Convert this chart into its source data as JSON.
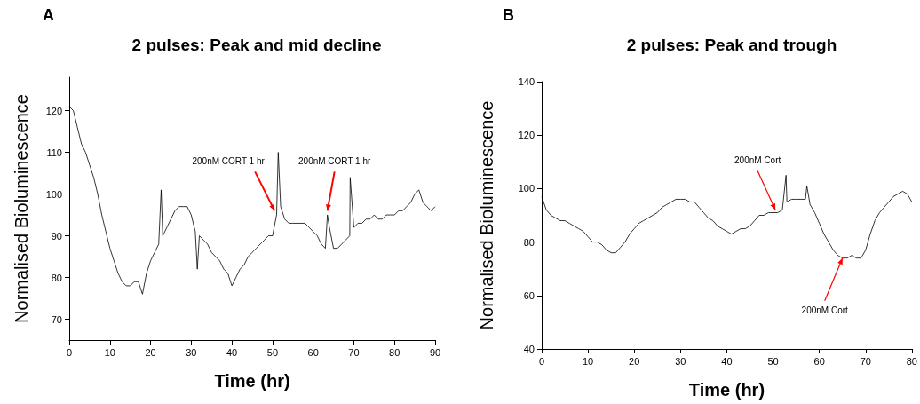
{
  "chart_data": [
    {
      "type": "line",
      "title": "2 pulses: Peak and mid decline",
      "xlabel": "Time (hr)",
      "ylabel": "Normalised Bioluminescence",
      "xlim": [
        0,
        90
      ],
      "ylim": [
        65,
        128
      ],
      "xticks": [
        0,
        10,
        20,
        30,
        40,
        50,
        60,
        70,
        80,
        90
      ],
      "yticks": [
        70,
        80,
        90,
        100,
        110,
        120
      ],
      "marker": "none",
      "line_style": "solid",
      "annotations": [
        "A",
        {
          "text": "200nM CORT 1 hr",
          "x": 50.5,
          "y": 96
        },
        {
          "text": "200nM CORT 1 hr",
          "x": 63.5,
          "y": 96
        }
      ],
      "series": [
        {
          "color": "#000000",
          "x": [
            0,
            1,
            2,
            3,
            4,
            5,
            6,
            7,
            8,
            9,
            10,
            11,
            12,
            13,
            14,
            15,
            16,
            17,
            18,
            19,
            20,
            21,
            22,
            22.6,
            23,
            24,
            25,
            26,
            27,
            28,
            29,
            30,
            31,
            31.5,
            32,
            33,
            34,
            35,
            36,
            37,
            38,
            39,
            40,
            41,
            42,
            43,
            44,
            45,
            46,
            47,
            48,
            49,
            50,
            51,
            51.4,
            52,
            53,
            54,
            55,
            56,
            57,
            58,
            59,
            60,
            61,
            62,
            63,
            63.5,
            64,
            65,
            66,
            67,
            68,
            69,
            69.1,
            70,
            71,
            72,
            73,
            74,
            75,
            76,
            77,
            78,
            79,
            80,
            81,
            82,
            83,
            84,
            85,
            86,
            87,
            88,
            89,
            90
          ],
          "values": [
            121,
            120,
            116,
            112,
            110,
            107,
            104,
            100,
            95,
            91,
            87,
            84,
            81,
            79,
            78,
            78,
            79,
            79,
            76,
            81,
            84,
            86,
            88,
            101,
            90,
            92,
            94,
            96,
            97,
            97,
            97,
            95,
            91,
            82,
            90,
            89,
            88,
            86,
            85,
            84,
            82,
            81,
            78,
            80,
            82,
            83,
            85,
            86,
            87,
            88,
            89,
            90,
            90,
            95,
            110,
            97,
            94,
            93,
            93,
            93,
            93,
            93,
            92,
            91,
            90,
            88,
            87,
            95,
            92,
            87,
            87,
            88,
            89,
            90,
            104,
            92,
            93,
            93,
            94,
            94,
            95,
            94,
            94,
            95,
            95,
            95,
            96,
            96,
            97,
            98,
            100,
            101,
            98,
            97,
            96,
            97
          ]
        }
      ]
    },
    {
      "type": "line",
      "title": "2 pulses: Peak and trough",
      "xlabel": "Time (hr)",
      "ylabel": "Normalised Bioluminescence",
      "xlim": [
        0,
        80
      ],
      "ylim": [
        40,
        140
      ],
      "xticks": [
        0,
        10,
        20,
        30,
        40,
        50,
        60,
        70,
        80
      ],
      "yticks": [
        40,
        60,
        80,
        100,
        120,
        140
      ],
      "marker": "none",
      "line_style": "solid",
      "annotations": [
        "B",
        {
          "text": "200nM Cort",
          "x": 50.5,
          "y": 92
        },
        {
          "text": "200nM Cort",
          "x": 65,
          "y": 74
        }
      ],
      "series": [
        {
          "color": "#000000",
          "x": [
            0,
            1,
            2,
            3,
            4,
            5,
            6,
            7,
            8,
            9,
            10,
            11,
            12,
            13,
            14,
            15,
            16,
            17,
            18,
            19,
            20,
            21,
            22,
            23,
            24,
            25,
            26,
            27,
            28,
            29,
            30,
            31,
            32,
            33,
            34,
            35,
            36,
            37,
            38,
            39,
            40,
            41,
            42,
            43,
            44,
            45,
            46,
            47,
            48,
            49,
            50,
            51,
            52,
            52.8,
            53,
            54,
            55,
            56,
            57,
            57.3,
            58,
            59,
            60,
            61,
            62,
            63,
            64,
            65,
            66,
            67,
            68,
            69,
            70,
            71,
            72,
            73,
            74,
            75,
            76,
            77,
            78,
            79,
            80
          ],
          "values": [
            97,
            92,
            90,
            89,
            88,
            88,
            87,
            86,
            85,
            84,
            82,
            80,
            80,
            79,
            77,
            76,
            76,
            78,
            80,
            83,
            85,
            87,
            88,
            89,
            90,
            91,
            93,
            94,
            95,
            96,
            96,
            96,
            95,
            95,
            93,
            91,
            89,
            88,
            86,
            85,
            84,
            83,
            84,
            85,
            85,
            86,
            88,
            90,
            90,
            91,
            91,
            91,
            92,
            105,
            95,
            96,
            96,
            96,
            96,
            101,
            94,
            91,
            87,
            83,
            80,
            77,
            75,
            74,
            74,
            75,
            74,
            74,
            77,
            83,
            88,
            91,
            93,
            95,
            97,
            98,
            99,
            98,
            95
          ]
        }
      ]
    }
  ]
}
